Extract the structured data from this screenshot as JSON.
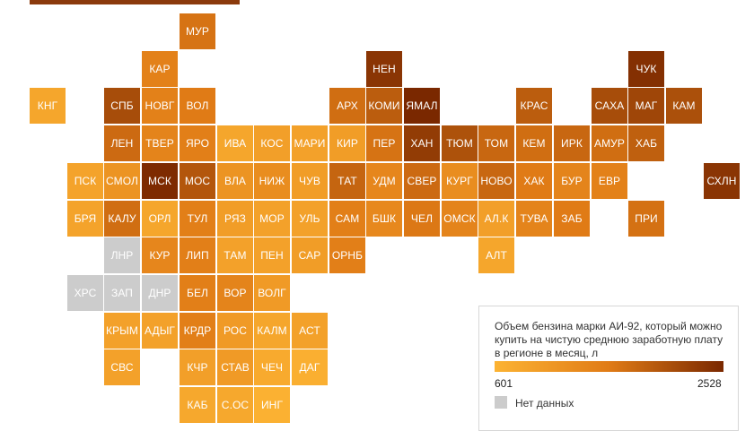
{
  "legend": {
    "title": "Объем бензина марки АИ-92, который можно купить на чистую среднюю заработную плату в регионе в месяц, л",
    "min_label": "601",
    "max_label": "2528",
    "no_data_label": "Нет данных",
    "colors": {
      "low": "#fcb333",
      "mid": "#e07b16",
      "high": "#7a2800",
      "no_data": "#cccccc"
    }
  },
  "regions": [
    {
      "code": "МУР",
      "level": 0.55
    },
    {
      "code": "КАР",
      "level": 0.45
    },
    {
      "code": "НЕН",
      "level": 0.92
    },
    {
      "code": "ЧУК",
      "level": 0.95
    },
    {
      "code": "КНГ",
      "level": 0.12
    },
    {
      "code": "СПБ",
      "level": 0.78
    },
    {
      "code": "НОВГ",
      "level": 0.45
    },
    {
      "code": "ВОЛ",
      "level": 0.5
    },
    {
      "code": "АРХ",
      "level": 0.58
    },
    {
      "code": "КОМИ",
      "level": 0.68
    },
    {
      "code": "ЯМАЛ",
      "level": 1.0
    },
    {
      "code": "КРАС",
      "level": 0.68
    },
    {
      "code": "САХА",
      "level": 0.78
    },
    {
      "code": "МАГ",
      "level": 0.82
    },
    {
      "code": "КАМ",
      "level": 0.76
    },
    {
      "code": "ЛЕН",
      "level": 0.6
    },
    {
      "code": "ТВЕР",
      "level": 0.42
    },
    {
      "code": "ЯРО",
      "level": 0.46
    },
    {
      "code": "ИВА",
      "level": 0.12
    },
    {
      "code": "КОС",
      "level": 0.18
    },
    {
      "code": "МАРИ",
      "level": 0.16
    },
    {
      "code": "КИР",
      "level": 0.2
    },
    {
      "code": "ПЕР",
      "level": 0.55
    },
    {
      "code": "ХАН",
      "level": 0.88
    },
    {
      "code": "ТЮМ",
      "level": 0.75
    },
    {
      "code": "ТОМ",
      "level": 0.62
    },
    {
      "code": "КЕМ",
      "level": 0.58
    },
    {
      "code": "ИРК",
      "level": 0.62
    },
    {
      "code": "АМУР",
      "level": 0.58
    },
    {
      "code": "ХАБ",
      "level": 0.66
    },
    {
      "code": "ПСК",
      "level": 0.14
    },
    {
      "code": "СМОЛ",
      "level": 0.28
    },
    {
      "code": "МСК",
      "level": 0.98
    },
    {
      "code": "МОС",
      "level": 0.72
    },
    {
      "code": "ВЛА",
      "level": 0.28
    },
    {
      "code": "НИЖ",
      "level": 0.34
    },
    {
      "code": "ЧУВ",
      "level": 0.2
    },
    {
      "code": "ТАТ",
      "level": 0.63
    },
    {
      "code": "УДМ",
      "level": 0.4
    },
    {
      "code": "СВЕР",
      "level": 0.6
    },
    {
      "code": "КУРГ",
      "level": 0.34
    },
    {
      "code": "НОВО",
      "level": 0.62
    },
    {
      "code": "ХАК",
      "level": 0.5
    },
    {
      "code": "БУР",
      "level": 0.42
    },
    {
      "code": "ЕВР",
      "level": 0.45
    },
    {
      "code": "СХЛН",
      "level": 0.92
    },
    {
      "code": "БРЯ",
      "level": 0.14
    },
    {
      "code": "КАЛУ",
      "level": 0.58
    },
    {
      "code": "ОРЛ",
      "level": 0.12
    },
    {
      "code": "ТУЛ",
      "level": 0.46
    },
    {
      "code": "РЯЗ",
      "level": 0.2
    },
    {
      "code": "МОР",
      "level": 0.16
    },
    {
      "code": "УЛЬ",
      "level": 0.16
    },
    {
      "code": "САМ",
      "level": 0.46
    },
    {
      "code": "БШК",
      "level": 0.38
    },
    {
      "code": "ЧЕЛ",
      "level": 0.52
    },
    {
      "code": "ОМСК",
      "level": 0.42
    },
    {
      "code": "АЛ.К",
      "level": 0.18
    },
    {
      "code": "ТУВА",
      "level": 0.42
    },
    {
      "code": "ЗАБ",
      "level": 0.5
    },
    {
      "code": "ПРИ",
      "level": 0.56
    },
    {
      "code": "ЛНР",
      "level": null
    },
    {
      "code": "КУР",
      "level": 0.4
    },
    {
      "code": "ЛИП",
      "level": 0.46
    },
    {
      "code": "ТАМ",
      "level": 0.16
    },
    {
      "code": "ПЕН",
      "level": 0.16
    },
    {
      "code": "САР",
      "level": 0.2
    },
    {
      "code": "ОРНБ",
      "level": 0.46
    },
    {
      "code": "АЛТ",
      "level": 0.12
    },
    {
      "code": "ХРС",
      "level": null
    },
    {
      "code": "ЗАП",
      "level": null
    },
    {
      "code": "ДНР",
      "level": null
    },
    {
      "code": "БЕЛ",
      "level": 0.46
    },
    {
      "code": "ВОР",
      "level": 0.42
    },
    {
      "code": "ВОЛГ",
      "level": 0.22
    },
    {
      "code": "КРЫМ",
      "level": 0.16
    },
    {
      "code": "АДЫГ",
      "level": 0.16
    },
    {
      "code": "КРДР",
      "level": 0.46
    },
    {
      "code": "РОС",
      "level": 0.22
    },
    {
      "code": "КАЛМ",
      "level": 0.12
    },
    {
      "code": "АСТ",
      "level": 0.16
    },
    {
      "code": "СВС",
      "level": 0.16
    },
    {
      "code": "КЧР",
      "level": 0.18
    },
    {
      "code": "СТАВ",
      "level": 0.22
    },
    {
      "code": "ЧЕЧ",
      "level": 0.08
    },
    {
      "code": "ДАГ",
      "level": 0.04
    },
    {
      "code": "КАБ",
      "level": 0.1
    },
    {
      "code": "С.ОС",
      "level": 0.1
    },
    {
      "code": "ИНГ",
      "level": 0.02
    }
  ]
}
